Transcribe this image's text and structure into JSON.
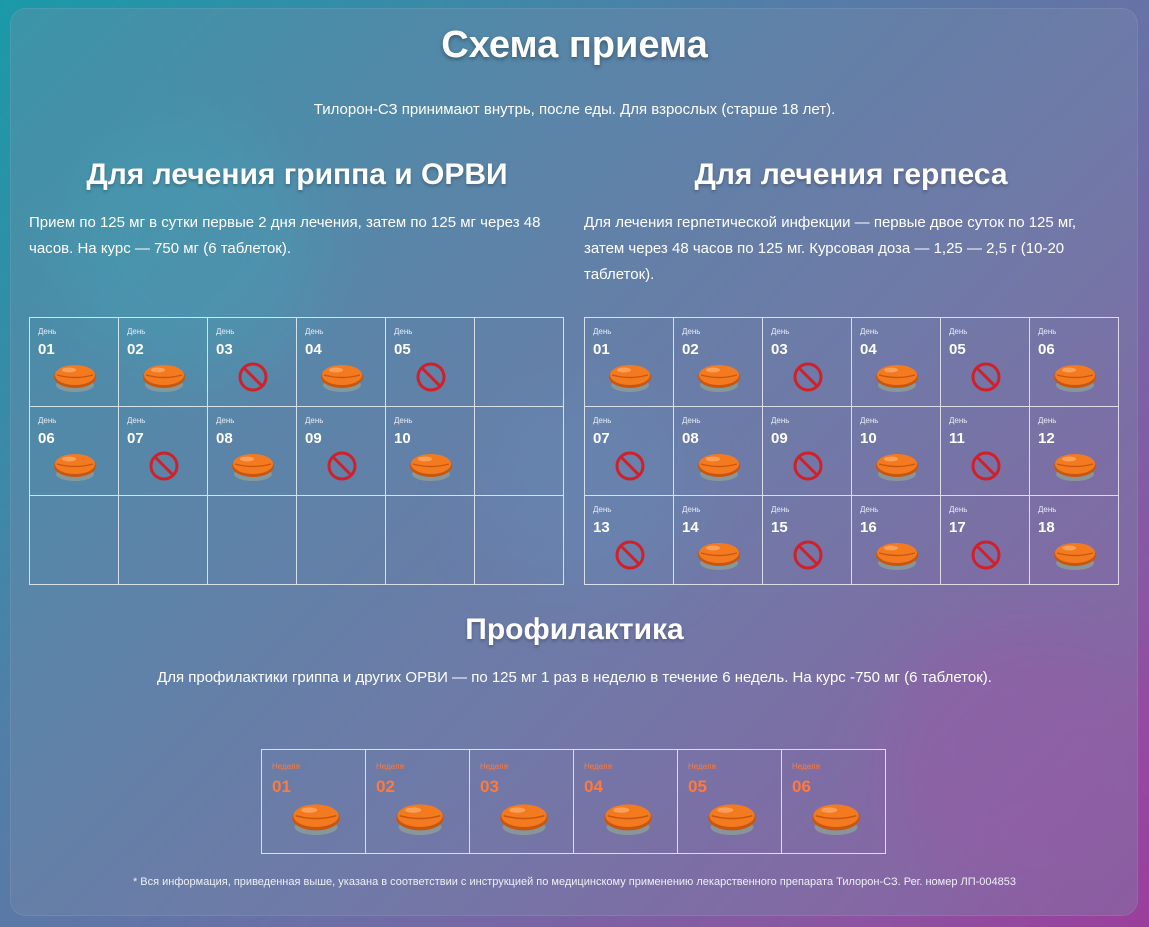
{
  "title": "Схема приема",
  "intro": "Тилорон-СЗ принимают внутрь, после еды. Для взрослых (старше 18 лет).",
  "flu": {
    "title": "Для лечения гриппа и ОРВИ",
    "text": "Прием по 125 мг в сутки первые 2 дня лечения, затем по 125 мг через 48 часов. На курс — 750 мг (6 таблеток).",
    "day_label": "День",
    "days": [
      {
        "num": "01",
        "icon": "pill-icon"
      },
      {
        "num": "02",
        "icon": "pill-icon"
      },
      {
        "num": "03",
        "icon": "no-icon"
      },
      {
        "num": "04",
        "icon": "pill-icon"
      },
      {
        "num": "05",
        "icon": "no-icon"
      },
      {
        "num": "06",
        "icon": "pill-icon"
      },
      {
        "num": "07",
        "icon": "no-icon"
      },
      {
        "num": "08",
        "icon": "pill-icon"
      },
      {
        "num": "09",
        "icon": "no-icon"
      },
      {
        "num": "10",
        "icon": "pill-icon"
      }
    ]
  },
  "herpes": {
    "title": "Для лечения герпеса",
    "text": "Для лечения герпетической инфекции — первые двое суток по 125 мг, затем через 48 часов по 125 мг. Курсовая доза — 1,25 — 2,5 г (10-20 таблеток).",
    "day_label": "День",
    "days": [
      {
        "num": "01",
        "icon": "pill-icon"
      },
      {
        "num": "02",
        "icon": "pill-icon"
      },
      {
        "num": "03",
        "icon": "no-icon"
      },
      {
        "num": "04",
        "icon": "pill-icon"
      },
      {
        "num": "05",
        "icon": "no-icon"
      },
      {
        "num": "06",
        "icon": "pill-icon"
      },
      {
        "num": "07",
        "icon": "no-icon"
      },
      {
        "num": "08",
        "icon": "pill-icon"
      },
      {
        "num": "09",
        "icon": "no-icon"
      },
      {
        "num": "10",
        "icon": "pill-icon"
      },
      {
        "num": "11",
        "icon": "no-icon"
      },
      {
        "num": "12",
        "icon": "pill-icon"
      },
      {
        "num": "13",
        "icon": "no-icon"
      },
      {
        "num": "14",
        "icon": "pill-icon"
      },
      {
        "num": "15",
        "icon": "no-icon"
      },
      {
        "num": "16",
        "icon": "pill-icon"
      },
      {
        "num": "17",
        "icon": "no-icon"
      },
      {
        "num": "18",
        "icon": "pill-icon"
      }
    ]
  },
  "prophylaxis": {
    "title": "Профилактика",
    "text": "Для профилактики гриппа и других ОРВИ — по 125 мг 1 раз в неделю в течение 6 недель. На курс -750 мг (6 таблеток).",
    "week_label": "Неделя",
    "weeks": [
      {
        "num": "01",
        "icon": "pill-icon"
      },
      {
        "num": "02",
        "icon": "pill-icon"
      },
      {
        "num": "03",
        "icon": "pill-icon"
      },
      {
        "num": "04",
        "icon": "pill-icon"
      },
      {
        "num": "05",
        "icon": "pill-icon"
      },
      {
        "num": "06",
        "icon": "pill-icon"
      }
    ]
  },
  "footnote": "* Вся информация, приведенная выше, указана в соответствии с инструкцией по медицинскому применению лекарственного препарата Тилорон-СЗ. Рег. номер ЛП-004853",
  "colors": {
    "pill": "#f47a20",
    "pill_dark": "#c8570d",
    "no_sign": "#d0202a",
    "week_text": "#ff7a3a"
  }
}
